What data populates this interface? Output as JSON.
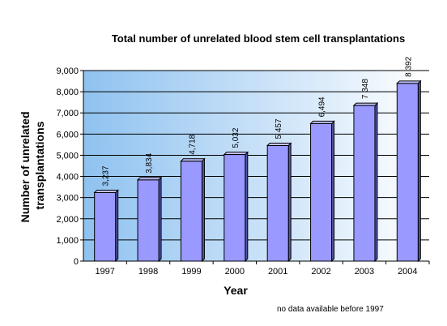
{
  "chart_data": {
    "type": "bar",
    "title": "Total number of unrelated blood stem cell transplantations",
    "xlabel": "Year",
    "ylabel": "Number of unrelated transplantations",
    "ylabel_lines": [
      "Number of unrelated",
      "transplantations"
    ],
    "note": "no data available before 1997",
    "categories": [
      "1997",
      "1998",
      "1999",
      "2000",
      "2001",
      "2002",
      "2003",
      "2004"
    ],
    "values": [
      3237,
      3834,
      4718,
      5032,
      5457,
      6494,
      7348,
      8392
    ],
    "value_labels": [
      "3,237",
      "3,834",
      "4,718",
      "5,032",
      "5 457",
      "6,494",
      "7 348",
      "8 392"
    ],
    "ylim": [
      0,
      9000
    ],
    "yticks": [
      0,
      1000,
      2000,
      3000,
      4000,
      5000,
      6000,
      7000,
      8000,
      9000
    ],
    "ytick_labels": [
      "0",
      "1,000",
      "2,000",
      "3,000",
      "4,000",
      "5,000",
      "6,000",
      "7,000",
      "8,000",
      "9,000"
    ],
    "grid": true,
    "legend": "none",
    "colors": {
      "bar_front": "#9999ff",
      "bar_side": "#5555aa",
      "bar_top": "#c4c4ff",
      "bar_outline": "#000000",
      "plot_bg_left": "#8fc2f0",
      "plot_bg_right": "#ffffff",
      "gridline": "#000000"
    }
  }
}
